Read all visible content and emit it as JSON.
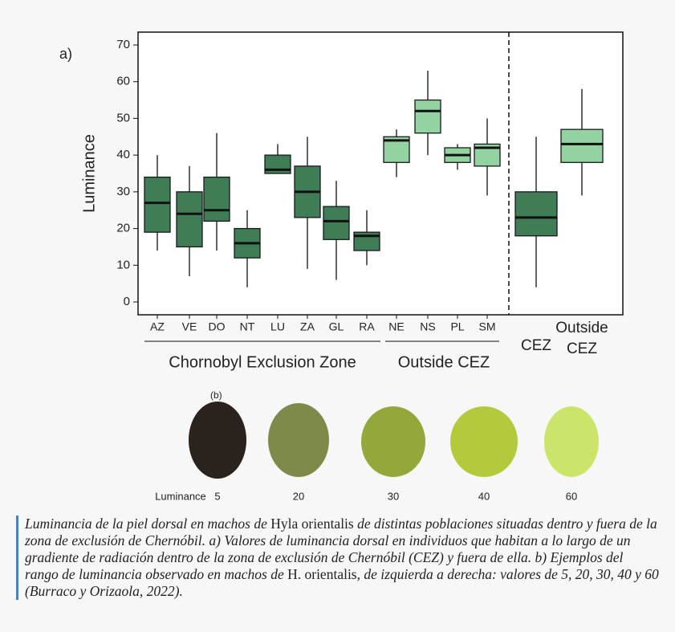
{
  "chart_data": {
    "type": "box",
    "panel_label": "a)",
    "y_label": "Luminance",
    "categories": [
      "AZ",
      "VE",
      "DO",
      "NT",
      "LU",
      "ZA",
      "GL",
      "RA",
      "NE",
      "NS",
      "PL",
      "SM",
      "CEZ",
      "Outside CEZ"
    ],
    "boxes": [
      {
        "min": 14,
        "q1": 19,
        "median": 27,
        "q3": 34,
        "max": 40
      },
      {
        "min": 7,
        "q1": 15,
        "median": 24,
        "q3": 30,
        "max": 37
      },
      {
        "min": 14,
        "q1": 22,
        "median": 25,
        "q3": 34,
        "max": 46
      },
      {
        "min": 4,
        "q1": 12,
        "median": 16,
        "q3": 20,
        "max": 25
      },
      {
        "min": 35,
        "q1": 35,
        "median": 36,
        "q3": 40,
        "max": 43
      },
      {
        "min": 9,
        "q1": 23,
        "median": 30,
        "q3": 37,
        "max": 45
      },
      {
        "min": 6,
        "q1": 17,
        "median": 22,
        "q3": 26,
        "max": 33
      },
      {
        "min": 10,
        "q1": 14,
        "median": 18,
        "q3": 19,
        "max": 25
      },
      {
        "min": 34,
        "q1": 38,
        "median": 44,
        "q3": 45,
        "max": 47
      },
      {
        "min": 40,
        "q1": 46,
        "median": 52,
        "q3": 55,
        "max": 63
      },
      {
        "min": 36,
        "q1": 38,
        "median": 40,
        "q3": 42,
        "max": 43
      },
      {
        "min": 29,
        "q1": 37,
        "median": 42,
        "q3": 43,
        "max": 50
      },
      {
        "min": 4,
        "q1": 18,
        "median": 23,
        "q3": 30,
        "max": 45
      },
      {
        "min": 29,
        "q1": 38,
        "median": 43,
        "q3": 47,
        "max": 58
      }
    ],
    "colors": [
      "#3f7d56",
      "#3f7d56",
      "#3f7d56",
      "#3f7d56",
      "#3f7d56",
      "#3f7d56",
      "#3f7d56",
      "#3f7d56",
      "#93d3a2",
      "#93d3a2",
      "#93d3a2",
      "#93d3a2",
      "#3f7d56",
      "#93d3a2"
    ],
    "groups": [
      "Chornobyl Exclusion Zone",
      "Outside CEZ"
    ],
    "ylim": [
      -3.5,
      73.5
    ],
    "yticks": [
      0,
      10,
      20,
      30,
      40,
      50,
      60,
      70
    ]
  },
  "examples": {
    "panel_label": "(b)",
    "label": "Luminance",
    "values": [
      "5",
      "20",
      "30",
      "40",
      "60"
    ]
  },
  "caption": [
    {
      "text": "Luminancia de la piel dorsal en machos de ",
      "style": "italic"
    },
    {
      "text": "Hyla orientalis",
      "style": "normal"
    },
    {
      "text": " de distintas poblaciones situadas dentro y fuera de la zona de exclusión de Chernóbil. a) Valores de luminancia dorsal en individuos que habitan a lo largo de un gradiente de radiación dentro de la zona de exclusión de Chernóbil (CEZ) y fuera de ella. b) Ejemplos del rango de luminancia observado en machos de ",
      "style": "italic"
    },
    {
      "text": "H. orientalis",
      "style": "normal"
    },
    {
      "text": ", de izquierda a derecha: valores de 5, 20, 30, 40 y 60 (Burraco y Orizaola, 2022).",
      "style": "italic"
    }
  ]
}
